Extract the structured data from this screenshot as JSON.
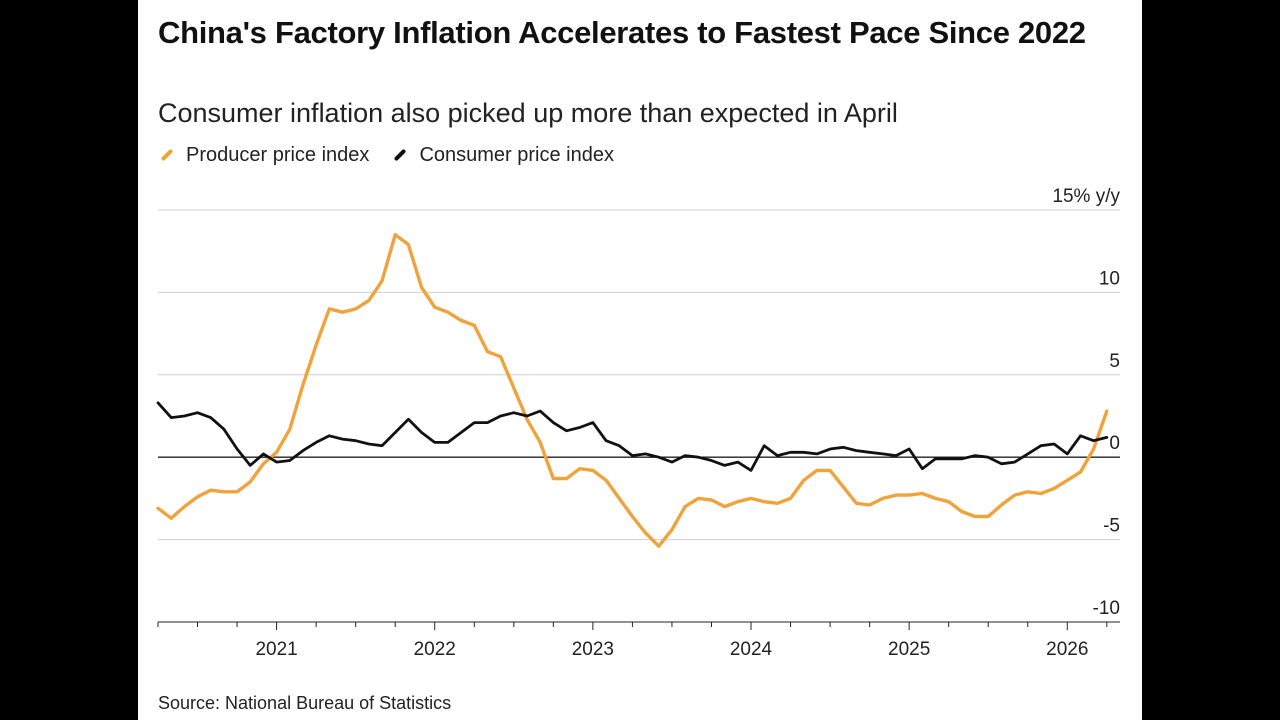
{
  "header": {
    "title": "China's Factory Inflation Accelerates to Fastest Pace Since 2022",
    "subtitle": "Consumer inflation also picked up more than expected in April"
  },
  "legend": [
    {
      "label": "Producer price index",
      "color": "#f0a33a"
    },
    {
      "label": "Consumer price index",
      "color": "#111111"
    }
  ],
  "footer": {
    "source": "Source: National Bureau of Statistics"
  },
  "chart_data": {
    "type": "line",
    "title": "China's Factory Inflation Accelerates to Fastest Pace Since 2022",
    "subtitle": "Consumer inflation also picked up more than expected in April",
    "ylabel": "15% y/y",
    "y_unit": "% y/y",
    "ylim": [
      -10,
      15
    ],
    "yticks": [
      -10,
      -5,
      0,
      5,
      10,
      15
    ],
    "ytick_labels": [
      "-10",
      "-5",
      "0",
      "5",
      "10",
      "15% y/y"
    ],
    "xlim": [
      "2020-04",
      "2026-05"
    ],
    "xticks": [
      "2021",
      "2022",
      "2023",
      "2024",
      "2025",
      "2026"
    ],
    "grid": true,
    "legend_position": "top-left",
    "series": [
      {
        "name": "Producer price index",
        "color": "#f0a33a",
        "points": [
          [
            "2020-04",
            -3.1
          ],
          [
            "2020-05",
            -3.7
          ],
          [
            "2020-06",
            -3.0
          ],
          [
            "2020-07",
            -2.4
          ],
          [
            "2020-08",
            -2.0
          ],
          [
            "2020-09",
            -2.1
          ],
          [
            "2020-10",
            -2.1
          ],
          [
            "2020-11",
            -1.5
          ],
          [
            "2020-12",
            -0.4
          ],
          [
            "2021-01",
            0.3
          ],
          [
            "2021-02",
            1.7
          ],
          [
            "2021-03",
            4.4
          ],
          [
            "2021-04",
            6.8
          ],
          [
            "2021-05",
            9.0
          ],
          [
            "2021-06",
            8.8
          ],
          [
            "2021-07",
            9.0
          ],
          [
            "2021-08",
            9.5
          ],
          [
            "2021-09",
            10.7
          ],
          [
            "2021-10",
            13.5
          ],
          [
            "2021-11",
            12.9
          ],
          [
            "2021-12",
            10.3
          ],
          [
            "2022-01",
            9.1
          ],
          [
            "2022-02",
            8.8
          ],
          [
            "2022-03",
            8.3
          ],
          [
            "2022-04",
            8.0
          ],
          [
            "2022-05",
            6.4
          ],
          [
            "2022-06",
            6.1
          ],
          [
            "2022-07",
            4.2
          ],
          [
            "2022-08",
            2.3
          ],
          [
            "2022-09",
            0.9
          ],
          [
            "2022-10",
            -1.3
          ],
          [
            "2022-11",
            -1.3
          ],
          [
            "2022-12",
            -0.7
          ],
          [
            "2023-01",
            -0.8
          ],
          [
            "2023-02",
            -1.4
          ],
          [
            "2023-03",
            -2.5
          ],
          [
            "2023-04",
            -3.6
          ],
          [
            "2023-05",
            -4.6
          ],
          [
            "2023-06",
            -5.4
          ],
          [
            "2023-07",
            -4.4
          ],
          [
            "2023-08",
            -3.0
          ],
          [
            "2023-09",
            -2.5
          ],
          [
            "2023-10",
            -2.6
          ],
          [
            "2023-11",
            -3.0
          ],
          [
            "2023-12",
            -2.7
          ],
          [
            "2024-01",
            -2.5
          ],
          [
            "2024-02",
            -2.7
          ],
          [
            "2024-03",
            -2.8
          ],
          [
            "2024-04",
            -2.5
          ],
          [
            "2024-05",
            -1.4
          ],
          [
            "2024-06",
            -0.8
          ],
          [
            "2024-07",
            -0.8
          ],
          [
            "2024-08",
            -1.8
          ],
          [
            "2024-09",
            -2.8
          ],
          [
            "2024-10",
            -2.9
          ],
          [
            "2024-11",
            -2.5
          ],
          [
            "2024-12",
            -2.3
          ],
          [
            "2025-01",
            -2.3
          ],
          [
            "2025-02",
            -2.2
          ],
          [
            "2025-03",
            -2.5
          ],
          [
            "2025-04",
            -2.7
          ],
          [
            "2025-05",
            -3.3
          ],
          [
            "2025-06",
            -3.6
          ],
          [
            "2025-07",
            -3.6
          ],
          [
            "2025-08",
            -2.9
          ],
          [
            "2025-09",
            -2.3
          ],
          [
            "2025-10",
            -2.1
          ],
          [
            "2025-11",
            -2.2
          ],
          [
            "2025-12",
            -1.9
          ],
          [
            "2026-01",
            -1.4
          ],
          [
            "2026-02",
            -0.9
          ],
          [
            "2026-03",
            0.5
          ],
          [
            "2026-04",
            2.8
          ]
        ]
      },
      {
        "name": "Consumer price index",
        "color": "#111111",
        "points": [
          [
            "2020-04",
            3.3
          ],
          [
            "2020-05",
            2.4
          ],
          [
            "2020-06",
            2.5
          ],
          [
            "2020-07",
            2.7
          ],
          [
            "2020-08",
            2.4
          ],
          [
            "2020-09",
            1.7
          ],
          [
            "2020-10",
            0.5
          ],
          [
            "2020-11",
            -0.5
          ],
          [
            "2020-12",
            0.2
          ],
          [
            "2021-01",
            -0.3
          ],
          [
            "2021-02",
            -0.2
          ],
          [
            "2021-03",
            0.4
          ],
          [
            "2021-04",
            0.9
          ],
          [
            "2021-05",
            1.3
          ],
          [
            "2021-06",
            1.1
          ],
          [
            "2021-07",
            1.0
          ],
          [
            "2021-08",
            0.8
          ],
          [
            "2021-09",
            0.7
          ],
          [
            "2021-10",
            1.5
          ],
          [
            "2021-11",
            2.3
          ],
          [
            "2021-12",
            1.5
          ],
          [
            "2022-01",
            0.9
          ],
          [
            "2022-02",
            0.9
          ],
          [
            "2022-03",
            1.5
          ],
          [
            "2022-04",
            2.1
          ],
          [
            "2022-05",
            2.1
          ],
          [
            "2022-06",
            2.5
          ],
          [
            "2022-07",
            2.7
          ],
          [
            "2022-08",
            2.5
          ],
          [
            "2022-09",
            2.8
          ],
          [
            "2022-10",
            2.1
          ],
          [
            "2022-11",
            1.6
          ],
          [
            "2022-12",
            1.8
          ],
          [
            "2023-01",
            2.1
          ],
          [
            "2023-02",
            1.0
          ],
          [
            "2023-03",
            0.7
          ],
          [
            "2023-04",
            0.1
          ],
          [
            "2023-05",
            0.2
          ],
          [
            "2023-06",
            0.0
          ],
          [
            "2023-07",
            -0.3
          ],
          [
            "2023-08",
            0.1
          ],
          [
            "2023-09",
            0.0
          ],
          [
            "2023-10",
            -0.2
          ],
          [
            "2023-11",
            -0.5
          ],
          [
            "2023-12",
            -0.3
          ],
          [
            "2024-01",
            -0.8
          ],
          [
            "2024-02",
            0.7
          ],
          [
            "2024-03",
            0.1
          ],
          [
            "2024-04",
            0.3
          ],
          [
            "2024-05",
            0.3
          ],
          [
            "2024-06",
            0.2
          ],
          [
            "2024-07",
            0.5
          ],
          [
            "2024-08",
            0.6
          ],
          [
            "2024-09",
            0.4
          ],
          [
            "2024-10",
            0.3
          ],
          [
            "2024-11",
            0.2
          ],
          [
            "2024-12",
            0.1
          ],
          [
            "2025-01",
            0.5
          ],
          [
            "2025-02",
            -0.7
          ],
          [
            "2025-03",
            -0.1
          ],
          [
            "2025-04",
            -0.1
          ],
          [
            "2025-05",
            -0.1
          ],
          [
            "2025-06",
            0.1
          ],
          [
            "2025-07",
            0.0
          ],
          [
            "2025-08",
            -0.4
          ],
          [
            "2025-09",
            -0.3
          ],
          [
            "2025-10",
            0.2
          ],
          [
            "2025-11",
            0.7
          ],
          [
            "2025-12",
            0.8
          ],
          [
            "2026-01",
            0.2
          ],
          [
            "2026-02",
            1.3
          ],
          [
            "2026-03",
            1.0
          ],
          [
            "2026-04",
            1.2
          ]
        ]
      }
    ]
  }
}
